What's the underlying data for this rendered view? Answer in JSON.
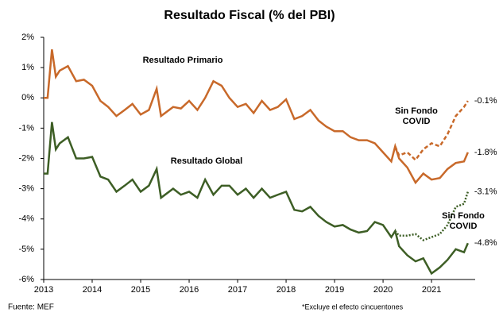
{
  "chart_data": {
    "type": "line",
    "title": "Resultado Fiscal (% del PBI)",
    "source": "Fuente: MEF",
    "footnote": "*Excluye el efecto cincuentones",
    "x": [
      2013,
      2013.08,
      2013.17,
      2013.25,
      2013.33,
      2013.5,
      2013.67,
      2013.83,
      2014,
      2014.17,
      2014.33,
      2014.5,
      2014.67,
      2014.83,
      2015,
      2015.17,
      2015.33,
      2015.42,
      2015.67,
      2015.83,
      2016,
      2016.17,
      2016.33,
      2016.5,
      2016.67,
      2016.83,
      2017,
      2017.17,
      2017.33,
      2017.5,
      2017.67,
      2017.83,
      2018,
      2018.17,
      2018.33,
      2018.5,
      2018.67,
      2018.83,
      2019,
      2019.17,
      2019.33,
      2019.5,
      2019.67,
      2019.83,
      2020,
      2020.17,
      2020.25,
      2020.33,
      2020.5,
      2020.67,
      2020.83,
      2021,
      2021.17,
      2021.33,
      2021.5,
      2021.67,
      2021.75
    ],
    "xlim": [
      2013,
      2021.9
    ],
    "xticks": [
      2013,
      2014,
      2015,
      2016,
      2017,
      2018,
      2019,
      2020,
      2021
    ],
    "ylim": [
      -6,
      2
    ],
    "yticks": [
      {
        "value": 2,
        "label": "2%"
      },
      {
        "value": 1,
        "label": "1%"
      },
      {
        "value": 0,
        "label": "0%"
      },
      {
        "value": -1,
        "label": "-1%"
      },
      {
        "value": -2,
        "label": "-2%"
      },
      {
        "value": -3,
        "label": "-3%"
      },
      {
        "value": -4,
        "label": "-4%"
      },
      {
        "value": -5,
        "label": "-5%"
      },
      {
        "value": -6,
        "label": "-6%"
      }
    ],
    "series": [
      {
        "name": "Resultado Primario",
        "color": "#c8692a",
        "dash": "solid",
        "values": [
          0,
          0,
          1.6,
          0.7,
          0.9,
          1.05,
          0.55,
          0.6,
          0.4,
          -0.1,
          -0.3,
          -0.6,
          -0.4,
          -0.2,
          -0.55,
          -0.4,
          0.3,
          -0.6,
          -0.3,
          -0.35,
          -0.1,
          -0.4,
          0,
          0.55,
          0.4,
          0,
          -0.3,
          -0.2,
          -0.5,
          -0.1,
          -0.4,
          -0.3,
          -0.05,
          -0.7,
          -0.6,
          -0.4,
          -0.75,
          -0.95,
          -1.1,
          -1.1,
          -1.3,
          -1.4,
          -1.4,
          -1.5,
          -1.8,
          -2.1,
          -1.6,
          -2.0,
          -2.3,
          -2.8,
          -2.5,
          -2.7,
          -2.65,
          -2.35,
          -2.15,
          -2.1,
          -1.8
        ],
        "value_labels": [
          null,
          null,
          null,
          null,
          null,
          null,
          null,
          null,
          null,
          null,
          null,
          null,
          null,
          null,
          null,
          null,
          null,
          null,
          null,
          null,
          null,
          null,
          null,
          null,
          null,
          null,
          null,
          null,
          null,
          null,
          null,
          null,
          null,
          null,
          null,
          null,
          null,
          null,
          null,
          null,
          null,
          null,
          null,
          null,
          null,
          null,
          null,
          null,
          null,
          null,
          null,
          null,
          null,
          null,
          null,
          null,
          "-1.8%"
        ]
      },
      {
        "name": "Sin Fondo COVID",
        "color": "#c8692a",
        "dash": "dashed",
        "values": [
          null,
          null,
          null,
          null,
          null,
          null,
          null,
          null,
          null,
          null,
          null,
          null,
          null,
          null,
          null,
          null,
          null,
          null,
          null,
          null,
          null,
          null,
          null,
          null,
          null,
          null,
          null,
          null,
          null,
          null,
          null,
          null,
          null,
          null,
          null,
          null,
          null,
          null,
          null,
          null,
          null,
          null,
          null,
          null,
          null,
          null,
          -1.6,
          -1.9,
          -1.8,
          -2.05,
          -1.7,
          -1.5,
          -1.6,
          -1.2,
          -0.6,
          -0.3,
          -0.1
        ],
        "value_labels": [
          null,
          null,
          null,
          null,
          null,
          null,
          null,
          null,
          null,
          null,
          null,
          null,
          null,
          null,
          null,
          null,
          null,
          null,
          null,
          null,
          null,
          null,
          null,
          null,
          null,
          null,
          null,
          null,
          null,
          null,
          null,
          null,
          null,
          null,
          null,
          null,
          null,
          null,
          null,
          null,
          null,
          null,
          null,
          null,
          null,
          null,
          null,
          null,
          null,
          null,
          null,
          null,
          null,
          null,
          null,
          null,
          "-0.1%"
        ]
      },
      {
        "name": "Resultado Global",
        "color": "#3d5e25",
        "dash": "solid",
        "values": [
          -2.5,
          -2.5,
          -0.8,
          -1.7,
          -1.5,
          -1.3,
          -2.0,
          -2.0,
          -1.95,
          -2.6,
          -2.7,
          -3.1,
          -2.9,
          -2.7,
          -3.1,
          -2.9,
          -2.35,
          -3.3,
          -3.0,
          -3.2,
          -3.1,
          -3.3,
          -2.7,
          -3.2,
          -2.9,
          -2.9,
          -3.2,
          -3.0,
          -3.3,
          -3.0,
          -3.3,
          -3.2,
          -3.1,
          -3.7,
          -3.75,
          -3.6,
          -3.9,
          -4.1,
          -4.25,
          -4.2,
          -4.35,
          -4.45,
          -4.4,
          -4.1,
          -4.2,
          -4.6,
          -4.4,
          -4.9,
          -5.2,
          -5.4,
          -5.3,
          -5.8,
          -5.6,
          -5.35,
          -5.0,
          -5.1,
          -4.8
        ],
        "value_labels": [
          null,
          null,
          null,
          null,
          null,
          null,
          null,
          null,
          null,
          null,
          null,
          null,
          null,
          null,
          null,
          null,
          null,
          null,
          null,
          null,
          null,
          null,
          null,
          null,
          null,
          null,
          null,
          null,
          null,
          null,
          null,
          null,
          null,
          null,
          null,
          null,
          null,
          null,
          null,
          null,
          null,
          null,
          null,
          null,
          null,
          null,
          null,
          null,
          null,
          null,
          null,
          null,
          null,
          null,
          null,
          null,
          "-4.8%"
        ]
      },
      {
        "name": "Sin Fondo COVID",
        "color": "#3d5e25",
        "dash": "dotted",
        "values": [
          null,
          null,
          null,
          null,
          null,
          null,
          null,
          null,
          null,
          null,
          null,
          null,
          null,
          null,
          null,
          null,
          null,
          null,
          null,
          null,
          null,
          null,
          null,
          null,
          null,
          null,
          null,
          null,
          null,
          null,
          null,
          null,
          null,
          null,
          null,
          null,
          null,
          null,
          null,
          null,
          null,
          null,
          null,
          null,
          null,
          null,
          -4.4,
          -4.55,
          -4.55,
          -4.5,
          -4.7,
          -4.6,
          -4.5,
          -4.2,
          -3.6,
          -3.5,
          -3.1
        ],
        "value_labels": [
          null,
          null,
          null,
          null,
          null,
          null,
          null,
          null,
          null,
          null,
          null,
          null,
          null,
          null,
          null,
          null,
          null,
          null,
          null,
          null,
          null,
          null,
          null,
          null,
          null,
          null,
          null,
          null,
          null,
          null,
          null,
          null,
          null,
          null,
          null,
          null,
          null,
          null,
          null,
          null,
          null,
          null,
          null,
          null,
          null,
          null,
          null,
          null,
          null,
          null,
          null,
          null,
          null,
          null,
          null,
          null,
          "-3.1%"
        ]
      }
    ]
  }
}
